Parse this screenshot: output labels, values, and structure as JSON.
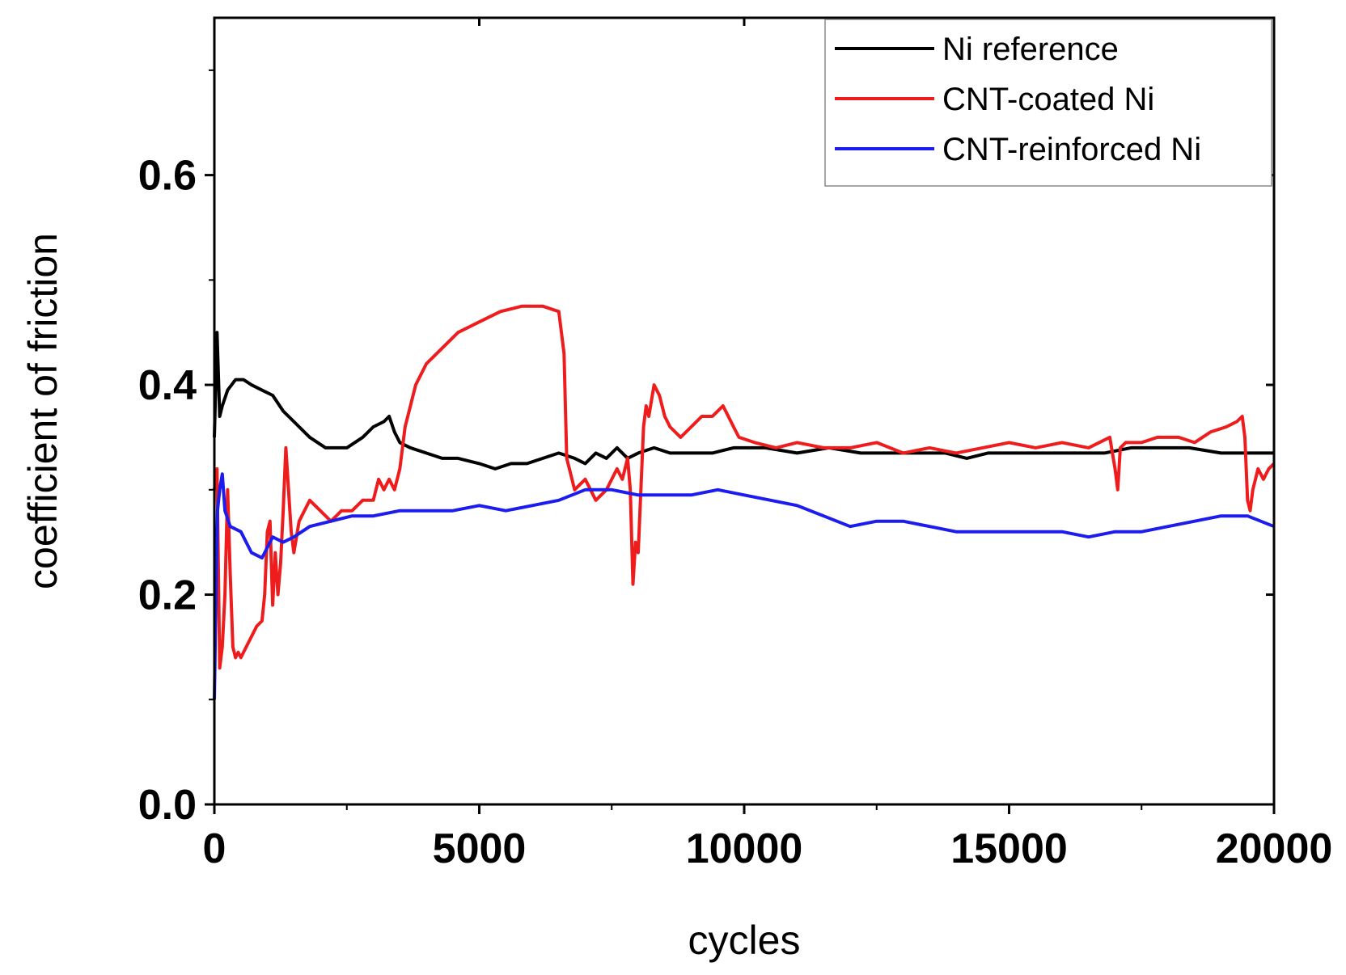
{
  "chart_data": {
    "type": "line",
    "title": "",
    "xlabel": "cycles",
    "ylabel": "coefficient of friction",
    "xlim": [
      0,
      20000
    ],
    "ylim": [
      0,
      0.75
    ],
    "x_ticks": [
      0,
      5000,
      10000,
      15000,
      20000
    ],
    "x_tick_labels": [
      "0",
      "5000",
      "10000",
      "15000",
      "20000"
    ],
    "y_ticks": [
      0.0,
      0.2,
      0.4,
      0.6
    ],
    "y_tick_labels": [
      "0.0",
      "0.2",
      "0.4",
      "0.6"
    ],
    "grid": false,
    "legend_position": "top-right",
    "series": [
      {
        "name": "Ni reference",
        "color": "#000000",
        "x": [
          0,
          50,
          100,
          150,
          250,
          400,
          550,
          700,
          900,
          1100,
          1300,
          1500,
          1800,
          2100,
          2500,
          2800,
          3000,
          3200,
          3300,
          3400,
          3500,
          3700,
          4000,
          4300,
          4600,
          5000,
          5300,
          5600,
          5900,
          6200,
          6500,
          6800,
          7000,
          7200,
          7400,
          7600,
          7800,
          8000,
          8300,
          8600,
          9000,
          9400,
          9800,
          10000,
          10400,
          11000,
          11600,
          12200,
          12800,
          13400,
          13800,
          14200,
          14600,
          15000,
          15600,
          16200,
          16800,
          17300,
          17800,
          18400,
          19000,
          19600,
          20000
        ],
        "values": [
          0.35,
          0.45,
          0.37,
          0.38,
          0.395,
          0.405,
          0.405,
          0.4,
          0.395,
          0.39,
          0.375,
          0.365,
          0.35,
          0.34,
          0.34,
          0.35,
          0.36,
          0.365,
          0.37,
          0.355,
          0.345,
          0.34,
          0.335,
          0.33,
          0.33,
          0.325,
          0.32,
          0.325,
          0.325,
          0.33,
          0.335,
          0.33,
          0.325,
          0.335,
          0.33,
          0.34,
          0.33,
          0.335,
          0.34,
          0.335,
          0.335,
          0.335,
          0.34,
          0.34,
          0.34,
          0.335,
          0.34,
          0.335,
          0.335,
          0.335,
          0.335,
          0.33,
          0.335,
          0.335,
          0.335,
          0.335,
          0.335,
          0.34,
          0.34,
          0.34,
          0.335,
          0.335,
          0.335
        ]
      },
      {
        "name": "CNT-coated Ni",
        "color": "#ee1c1c",
        "x": [
          0,
          50,
          100,
          150,
          200,
          250,
          300,
          350,
          400,
          450,
          500,
          600,
          700,
          800,
          900,
          950,
          1000,
          1050,
          1100,
          1150,
          1200,
          1250,
          1300,
          1350,
          1400,
          1450,
          1500,
          1600,
          1800,
          2000,
          2200,
          2400,
          2600,
          2800,
          3000,
          3100,
          3200,
          3300,
          3400,
          3500,
          3600,
          3700,
          3800,
          4000,
          4300,
          4600,
          5000,
          5400,
          5800,
          6200,
          6500,
          6600,
          6650,
          6700,
          6800,
          7000,
          7200,
          7400,
          7600,
          7700,
          7800,
          7850,
          7900,
          7950,
          8000,
          8050,
          8100,
          8150,
          8200,
          8300,
          8400,
          8500,
          8600,
          8800,
          9000,
          9200,
          9400,
          9600,
          9700,
          9800,
          9900,
          10200,
          10600,
          11000,
          11500,
          12000,
          12500,
          13000,
          13500,
          14000,
          14500,
          15000,
          15500,
          16000,
          16500,
          16900,
          17000,
          17050,
          17100,
          17200,
          17500,
          17800,
          18200,
          18500,
          18800,
          19100,
          19300,
          19400,
          19450,
          19500,
          19550,
          19600,
          19700,
          19800,
          19900,
          20000
        ],
        "values": [
          0.3,
          0.32,
          0.13,
          0.15,
          0.2,
          0.3,
          0.22,
          0.15,
          0.14,
          0.145,
          0.14,
          0.15,
          0.16,
          0.17,
          0.175,
          0.2,
          0.26,
          0.27,
          0.19,
          0.24,
          0.2,
          0.23,
          0.28,
          0.34,
          0.3,
          0.26,
          0.24,
          0.27,
          0.29,
          0.28,
          0.27,
          0.28,
          0.28,
          0.29,
          0.29,
          0.31,
          0.3,
          0.31,
          0.3,
          0.32,
          0.36,
          0.38,
          0.4,
          0.42,
          0.435,
          0.45,
          0.46,
          0.47,
          0.475,
          0.475,
          0.47,
          0.43,
          0.33,
          0.32,
          0.3,
          0.31,
          0.29,
          0.3,
          0.32,
          0.31,
          0.33,
          0.3,
          0.21,
          0.25,
          0.24,
          0.3,
          0.36,
          0.38,
          0.37,
          0.4,
          0.39,
          0.37,
          0.36,
          0.35,
          0.36,
          0.37,
          0.37,
          0.38,
          0.37,
          0.36,
          0.35,
          0.345,
          0.34,
          0.345,
          0.34,
          0.34,
          0.345,
          0.335,
          0.34,
          0.335,
          0.34,
          0.345,
          0.34,
          0.345,
          0.34,
          0.35,
          0.32,
          0.3,
          0.34,
          0.345,
          0.345,
          0.35,
          0.35,
          0.345,
          0.355,
          0.36,
          0.365,
          0.37,
          0.35,
          0.29,
          0.28,
          0.3,
          0.32,
          0.31,
          0.32,
          0.325
        ]
      },
      {
        "name": "CNT-reinforced Ni",
        "color": "#1c1cee",
        "x": [
          0,
          30,
          60,
          100,
          150,
          200,
          300,
          500,
          700,
          900,
          1100,
          1300,
          1500,
          1800,
          2200,
          2600,
          3000,
          3500,
          4000,
          4500,
          5000,
          5500,
          6000,
          6500,
          7000,
          7500,
          8000,
          8500,
          9000,
          9500,
          10000,
          10500,
          11000,
          11500,
          12000,
          12500,
          13000,
          13500,
          14000,
          14500,
          15000,
          15500,
          16000,
          16500,
          17000,
          17500,
          18000,
          18500,
          19000,
          19500,
          20000
        ],
        "values": [
          0.1,
          0.2,
          0.28,
          0.3,
          0.315,
          0.28,
          0.265,
          0.26,
          0.24,
          0.235,
          0.255,
          0.25,
          0.255,
          0.265,
          0.27,
          0.275,
          0.275,
          0.28,
          0.28,
          0.28,
          0.285,
          0.28,
          0.285,
          0.29,
          0.3,
          0.3,
          0.295,
          0.295,
          0.295,
          0.3,
          0.295,
          0.29,
          0.285,
          0.275,
          0.265,
          0.27,
          0.27,
          0.265,
          0.26,
          0.26,
          0.26,
          0.26,
          0.26,
          0.255,
          0.26,
          0.26,
          0.265,
          0.27,
          0.275,
          0.275,
          0.265
        ]
      }
    ]
  }
}
